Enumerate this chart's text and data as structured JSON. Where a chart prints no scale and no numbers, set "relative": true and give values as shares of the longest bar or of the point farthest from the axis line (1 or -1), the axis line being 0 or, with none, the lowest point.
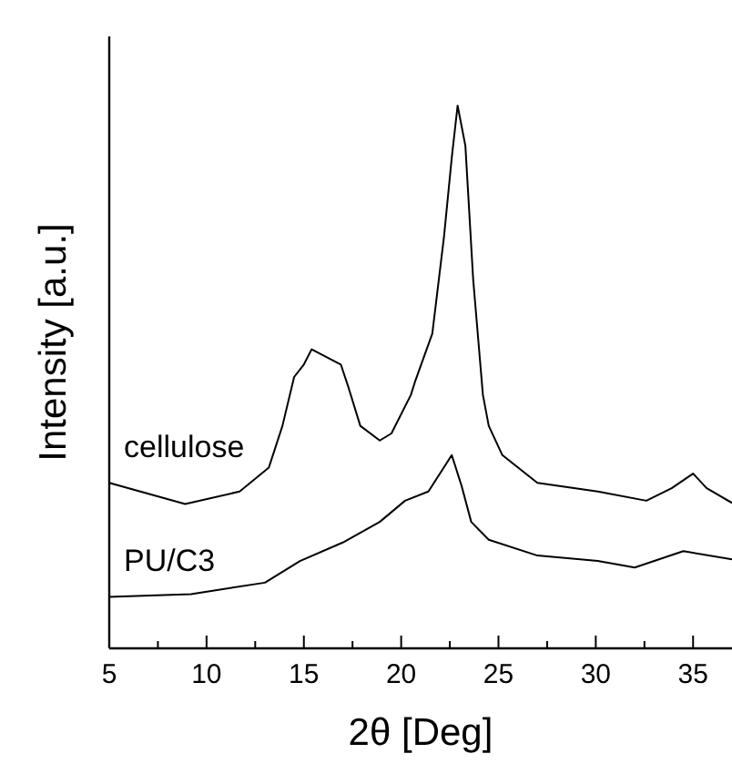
{
  "chart_data": {
    "type": "line",
    "relative": true,
    "xlabel": "2θ [Deg]",
    "ylabel": "Intensity [a.u.]",
    "xlim": [
      5,
      37
    ],
    "xticks": [
      5,
      {
        "value": 7.5,
        "label": null
      },
      10,
      {
        "value": 12.5,
        "label": null
      },
      15,
      {
        "value": 17.5,
        "label": null
      },
      20,
      {
        "value": 22.5,
        "label": null
      },
      25,
      {
        "value": 27.5,
        "label": null
      },
      30,
      {
        "value": 32.5,
        "label": null
      },
      35
    ],
    "tick_labels": "x",
    "grid": false,
    "line_style": "solid",
    "series": [
      {
        "name": "cellulose",
        "color": "#000000",
        "x": [
          5,
          8.9,
          11.7,
          13.2,
          13.9,
          14.5,
          15,
          15.4,
          16.9,
          17.3,
          17.9,
          18.9,
          19.5,
          20.5,
          20.7,
          21.6,
          22.2,
          22.6,
          22.9,
          23.3,
          23.7,
          24.2,
          24.5,
          25.2,
          27,
          30.1,
          32.6,
          33.9,
          35,
          35.7,
          37
        ],
        "values": [
          0.305,
          0.266,
          0.289,
          0.333,
          0.41,
          0.5,
          0.523,
          0.551,
          0.523,
          0.48,
          0.41,
          0.383,
          0.396,
          0.467,
          0.49,
          0.58,
          0.758,
          0.904,
          1,
          0.926,
          0.68,
          0.467,
          0.41,
          0.356,
          0.305,
          0.289,
          0.272,
          0.295,
          0.322,
          0.295,
          0.268
        ]
      },
      {
        "name": "PU/C3",
        "color": "#000000",
        "x": [
          5,
          9.2,
          13,
          14.8,
          17,
          18.9,
          20.2,
          21.4,
          22.6,
          23.1,
          23.6,
          24.5,
          27,
          30.1,
          32,
          34.5,
          37
        ],
        "values": [
          0.095,
          0.1,
          0.121,
          0.161,
          0.195,
          0.233,
          0.272,
          0.289,
          0.356,
          0.3,
          0.233,
          0.2,
          0.171,
          0.161,
          0.149,
          0.179,
          0.164
        ]
      }
    ]
  }
}
